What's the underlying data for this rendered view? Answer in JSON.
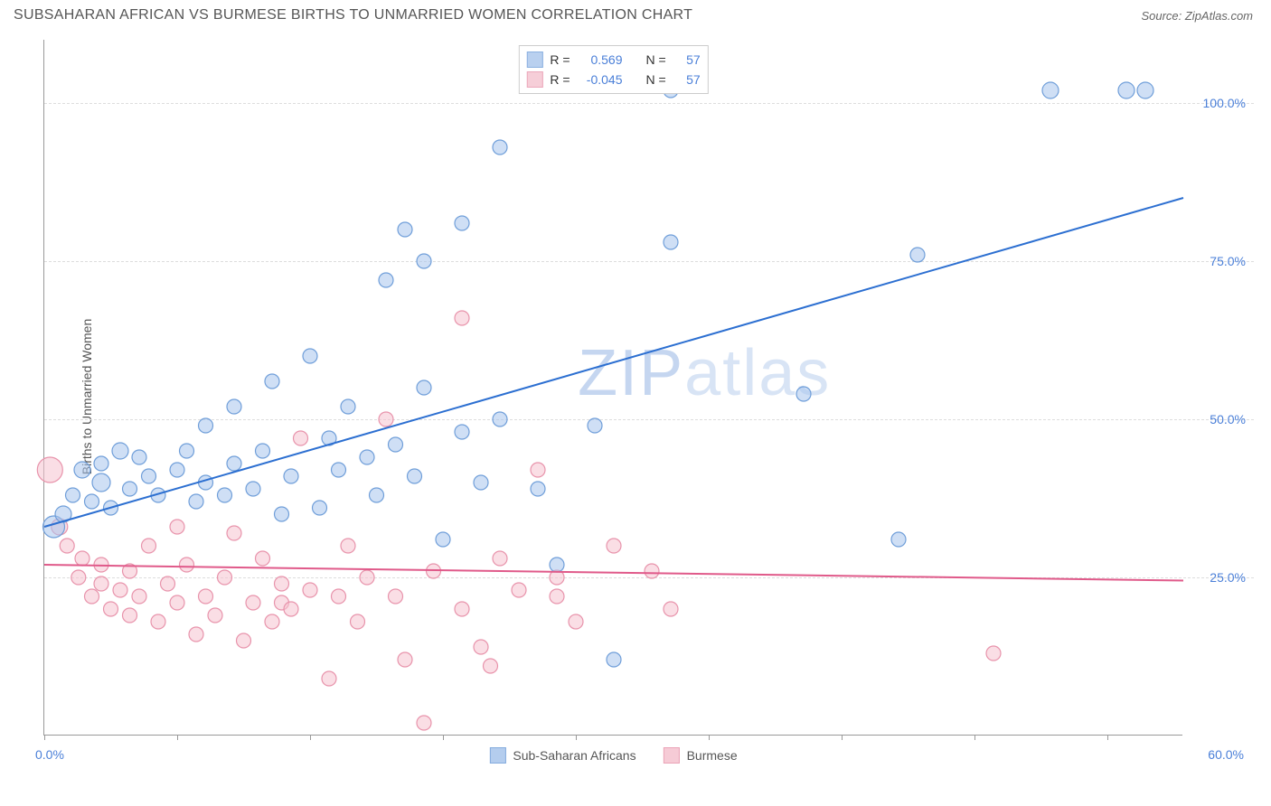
{
  "header": {
    "title": "SUBSAHARAN AFRICAN VS BURMESE BIRTHS TO UNMARRIED WOMEN CORRELATION CHART",
    "source": "Source: ZipAtlas.com"
  },
  "chart": {
    "type": "scatter",
    "yaxis_title": "Births to Unmarried Women",
    "watermark": "ZIPatlas",
    "xlim": [
      0,
      60
    ],
    "ylim": [
      0,
      110
    ],
    "xticks": [
      0,
      7,
      14,
      21,
      28,
      35,
      42,
      49,
      56
    ],
    "xaxis_labels": {
      "min": "0.0%",
      "max": "60.0%"
    },
    "yticks": [
      {
        "value": 25,
        "label": "25.0%"
      },
      {
        "value": 50,
        "label": "50.0%"
      },
      {
        "value": 75,
        "label": "75.0%"
      },
      {
        "value": 100,
        "label": "100.0%"
      }
    ],
    "grid_color": "#dddddd",
    "axis_color": "#999999",
    "background_color": "#ffffff",
    "label_color": "#4a7fd8",
    "title_color": "#555555",
    "title_fontsize": 16,
    "label_fontsize": 14,
    "series": [
      {
        "name": "Sub-Saharan Africans",
        "fill_color": "#a8c5ec",
        "stroke_color": "#6f9ed9",
        "fill_opacity": 0.55,
        "marker_radius_base": 8,
        "line_color": "#2c6fd1",
        "line_width": 2,
        "correlation": {
          "R": "0.569",
          "N": "57"
        },
        "trendline": {
          "x1": 0,
          "y1": 33,
          "x2": 60,
          "y2": 85
        },
        "points": [
          {
            "x": 0.5,
            "y": 33,
            "r": 12
          },
          {
            "x": 1,
            "y": 35,
            "r": 9
          },
          {
            "x": 1.5,
            "y": 38,
            "r": 8
          },
          {
            "x": 2,
            "y": 42,
            "r": 9
          },
          {
            "x": 2.5,
            "y": 37,
            "r": 8
          },
          {
            "x": 3,
            "y": 40,
            "r": 10
          },
          {
            "x": 3,
            "y": 43,
            "r": 8
          },
          {
            "x": 3.5,
            "y": 36,
            "r": 8
          },
          {
            "x": 4,
            "y": 45,
            "r": 9
          },
          {
            "x": 4.5,
            "y": 39,
            "r": 8
          },
          {
            "x": 5,
            "y": 44,
            "r": 8
          },
          {
            "x": 5.5,
            "y": 41,
            "r": 8
          },
          {
            "x": 6,
            "y": 38,
            "r": 8
          },
          {
            "x": 7,
            "y": 42,
            "r": 8
          },
          {
            "x": 7.5,
            "y": 45,
            "r": 8
          },
          {
            "x": 8,
            "y": 37,
            "r": 8
          },
          {
            "x": 8.5,
            "y": 40,
            "r": 8
          },
          {
            "x": 8.5,
            "y": 49,
            "r": 8
          },
          {
            "x": 9.5,
            "y": 38,
            "r": 8
          },
          {
            "x": 10,
            "y": 43,
            "r": 8
          },
          {
            "x": 10,
            "y": 52,
            "r": 8
          },
          {
            "x": 11,
            "y": 39,
            "r": 8
          },
          {
            "x": 11.5,
            "y": 45,
            "r": 8
          },
          {
            "x": 12,
            "y": 56,
            "r": 8
          },
          {
            "x": 12.5,
            "y": 35,
            "r": 8
          },
          {
            "x": 13,
            "y": 41,
            "r": 8
          },
          {
            "x": 14,
            "y": 60,
            "r": 8
          },
          {
            "x": 14.5,
            "y": 36,
            "r": 8
          },
          {
            "x": 15,
            "y": 47,
            "r": 8
          },
          {
            "x": 15.5,
            "y": 42,
            "r": 8
          },
          {
            "x": 16,
            "y": 52,
            "r": 8
          },
          {
            "x": 17,
            "y": 44,
            "r": 8
          },
          {
            "x": 17.5,
            "y": 38,
            "r": 8
          },
          {
            "x": 18,
            "y": 72,
            "r": 8
          },
          {
            "x": 18.5,
            "y": 46,
            "r": 8
          },
          {
            "x": 19,
            "y": 80,
            "r": 8
          },
          {
            "x": 19.5,
            "y": 41,
            "r": 8
          },
          {
            "x": 20,
            "y": 55,
            "r": 8
          },
          {
            "x": 20,
            "y": 75,
            "r": 8
          },
          {
            "x": 21,
            "y": 31,
            "r": 8
          },
          {
            "x": 22,
            "y": 48,
            "r": 8
          },
          {
            "x": 22,
            "y": 81,
            "r": 8
          },
          {
            "x": 23,
            "y": 40,
            "r": 8
          },
          {
            "x": 24,
            "y": 50,
            "r": 8
          },
          {
            "x": 24,
            "y": 93,
            "r": 8
          },
          {
            "x": 26,
            "y": 39,
            "r": 8
          },
          {
            "x": 27,
            "y": 27,
            "r": 8
          },
          {
            "x": 29,
            "y": 49,
            "r": 8
          },
          {
            "x": 30,
            "y": 12,
            "r": 8
          },
          {
            "x": 33,
            "y": 78,
            "r": 8
          },
          {
            "x": 33,
            "y": 102,
            "r": 8
          },
          {
            "x": 40,
            "y": 54,
            "r": 8
          },
          {
            "x": 45,
            "y": 31,
            "r": 8
          },
          {
            "x": 46,
            "y": 76,
            "r": 8
          },
          {
            "x": 53,
            "y": 102,
            "r": 9
          },
          {
            "x": 57,
            "y": 102,
            "r": 9
          },
          {
            "x": 58,
            "y": 102,
            "r": 9
          }
        ]
      },
      {
        "name": "Burmese",
        "fill_color": "#f5c3cf",
        "stroke_color": "#e893ab",
        "fill_opacity": 0.55,
        "marker_radius_base": 8,
        "line_color": "#e05a8a",
        "line_width": 2,
        "correlation": {
          "R": "-0.045",
          "N": "57"
        },
        "trendline": {
          "x1": 0,
          "y1": 27,
          "x2": 60,
          "y2": 24.5
        },
        "points": [
          {
            "x": 0.3,
            "y": 42,
            "r": 14
          },
          {
            "x": 0.8,
            "y": 33,
            "r": 9
          },
          {
            "x": 1.2,
            "y": 30,
            "r": 8
          },
          {
            "x": 1.8,
            "y": 25,
            "r": 8
          },
          {
            "x": 2,
            "y": 28,
            "r": 8
          },
          {
            "x": 2.5,
            "y": 22,
            "r": 8
          },
          {
            "x": 3,
            "y": 24,
            "r": 8
          },
          {
            "x": 3,
            "y": 27,
            "r": 8
          },
          {
            "x": 3.5,
            "y": 20,
            "r": 8
          },
          {
            "x": 4,
            "y": 23,
            "r": 8
          },
          {
            "x": 4.5,
            "y": 26,
            "r": 8
          },
          {
            "x": 4.5,
            "y": 19,
            "r": 8
          },
          {
            "x": 5,
            "y": 22,
            "r": 8
          },
          {
            "x": 5.5,
            "y": 30,
            "r": 8
          },
          {
            "x": 6,
            "y": 18,
            "r": 8
          },
          {
            "x": 6.5,
            "y": 24,
            "r": 8
          },
          {
            "x": 7,
            "y": 21,
            "r": 8
          },
          {
            "x": 7,
            "y": 33,
            "r": 8
          },
          {
            "x": 7.5,
            "y": 27,
            "r": 8
          },
          {
            "x": 8,
            "y": 16,
            "r": 8
          },
          {
            "x": 8.5,
            "y": 22,
            "r": 8
          },
          {
            "x": 9,
            "y": 19,
            "r": 8
          },
          {
            "x": 9.5,
            "y": 25,
            "r": 8
          },
          {
            "x": 10,
            "y": 32,
            "r": 8
          },
          {
            "x": 10.5,
            "y": 15,
            "r": 8
          },
          {
            "x": 11,
            "y": 21,
            "r": 8
          },
          {
            "x": 11.5,
            "y": 28,
            "r": 8
          },
          {
            "x": 12,
            "y": 18,
            "r": 8
          },
          {
            "x": 12.5,
            "y": 24,
            "r": 8
          },
          {
            "x": 12.5,
            "y": 21,
            "r": 8
          },
          {
            "x": 13,
            "y": 20,
            "r": 8
          },
          {
            "x": 13.5,
            "y": 47,
            "r": 8
          },
          {
            "x": 14,
            "y": 23,
            "r": 8
          },
          {
            "x": 15,
            "y": 9,
            "r": 8
          },
          {
            "x": 15.5,
            "y": 22,
            "r": 8
          },
          {
            "x": 16,
            "y": 30,
            "r": 8
          },
          {
            "x": 16.5,
            "y": 18,
            "r": 8
          },
          {
            "x": 17,
            "y": 25,
            "r": 8
          },
          {
            "x": 18,
            "y": 50,
            "r": 8
          },
          {
            "x": 18.5,
            "y": 22,
            "r": 8
          },
          {
            "x": 19,
            "y": 12,
            "r": 8
          },
          {
            "x": 20,
            "y": 2,
            "r": 8
          },
          {
            "x": 20.5,
            "y": 26,
            "r": 8
          },
          {
            "x": 22,
            "y": 20,
            "r": 8
          },
          {
            "x": 22,
            "y": 66,
            "r": 8
          },
          {
            "x": 23,
            "y": 14,
            "r": 8
          },
          {
            "x": 23.5,
            "y": 11,
            "r": 8
          },
          {
            "x": 24,
            "y": 28,
            "r": 8
          },
          {
            "x": 25,
            "y": 23,
            "r": 8
          },
          {
            "x": 26,
            "y": 42,
            "r": 8
          },
          {
            "x": 27,
            "y": 22,
            "r": 8
          },
          {
            "x": 28,
            "y": 18,
            "r": 8
          },
          {
            "x": 30,
            "y": 30,
            "r": 8
          },
          {
            "x": 32,
            "y": 26,
            "r": 8
          },
          {
            "x": 33,
            "y": 20,
            "r": 8
          },
          {
            "x": 50,
            "y": 13,
            "r": 8
          },
          {
            "x": 27,
            "y": 25,
            "r": 8
          }
        ]
      }
    ],
    "legend_top": {
      "border_color": "#cccccc",
      "r_label": "R =",
      "n_label": "N ="
    },
    "legend_bottom": [
      {
        "label": "Sub-Saharan Africans",
        "fill": "#a8c5ec",
        "stroke": "#6f9ed9"
      },
      {
        "label": "Burmese",
        "fill": "#f5c3cf",
        "stroke": "#e893ab"
      }
    ]
  }
}
